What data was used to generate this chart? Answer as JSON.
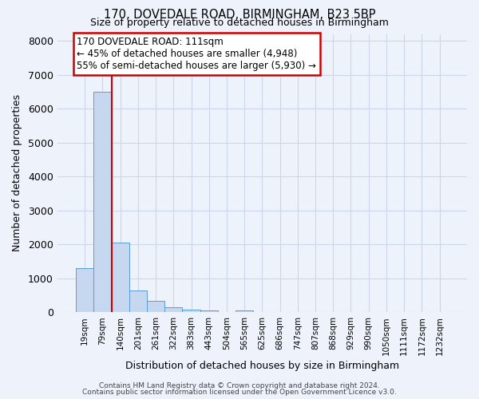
{
  "title1": "170, DOVEDALE ROAD, BIRMINGHAM, B23 5BP",
  "title2": "Size of property relative to detached houses in Birmingham",
  "xlabel": "Distribution of detached houses by size in Birmingham",
  "ylabel": "Number of detached properties",
  "annotation_line1": "170 DOVEDALE ROAD: 111sqm",
  "annotation_line2": "← 45% of detached houses are smaller (4,948)",
  "annotation_line3": "55% of semi-detached houses are larger (5,930) →",
  "bin_labels": [
    "19sqm",
    "79sqm",
    "140sqm",
    "201sqm",
    "261sqm",
    "322sqm",
    "383sqm",
    "443sqm",
    "504sqm",
    "565sqm",
    "625sqm",
    "686sqm",
    "747sqm",
    "807sqm",
    "868sqm",
    "929sqm",
    "990sqm",
    "1050sqm",
    "1111sqm",
    "1172sqm",
    "1232sqm"
  ],
  "bar_heights": [
    1300,
    6500,
    2050,
    650,
    350,
    150,
    90,
    55,
    0,
    60,
    0,
    0,
    0,
    0,
    0,
    0,
    0,
    0,
    0,
    0,
    0
  ],
  "bar_color": "#c5d8f0",
  "bar_edge_color": "#5b9bd5",
  "red_line_x": 1.5,
  "ylim": [
    0,
    8200
  ],
  "yticks": [
    0,
    1000,
    2000,
    3000,
    4000,
    5000,
    6000,
    7000,
    8000
  ],
  "grid_color": "#ccd6e8",
  "background_color": "#eef3fb",
  "annotation_box_color": "#ffffff",
  "annotation_box_edge": "#cc0000",
  "red_line_color": "#cc0000",
  "footer1": "Contains HM Land Registry data © Crown copyright and database right 2024.",
  "footer2": "Contains public sector information licensed under the Open Government Licence v3.0."
}
